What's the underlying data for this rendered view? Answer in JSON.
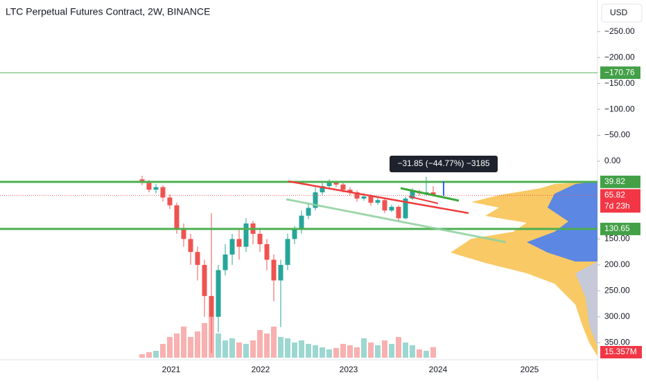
{
  "header": {
    "title": "LTC Perpetual Futures Contract, 2W, BINANCE",
    "currency": "USD"
  },
  "chart_data": {
    "type": "candlestick",
    "ylim": [
      -311,
      383
    ],
    "yticks": [
      {
        "value": -250,
        "label": "−250.00"
      },
      {
        "value": -200,
        "label": "−200.00"
      },
      {
        "value": -150,
        "label": "−150.00"
      },
      {
        "value": -100,
        "label": "−100.00"
      },
      {
        "value": -50,
        "label": "−50.00"
      },
      {
        "value": 0,
        "label": "0.00"
      },
      {
        "value": 150,
        "label": "150.00"
      },
      {
        "value": 200,
        "label": "200.00"
      },
      {
        "value": 250,
        "label": "250.00"
      },
      {
        "value": 300,
        "label": "300.00"
      },
      {
        "value": 350,
        "label": "350.00"
      }
    ],
    "categories": [
      "2021",
      "2022",
      "2023",
      "2024",
      "2025"
    ],
    "up_color": "#26a69a",
    "down_color": "#ef5350",
    "candles": [
      {
        "o": 35,
        "c": 42,
        "low": 28,
        "high": 46
      },
      {
        "o": 42,
        "c": 55,
        "low": 36,
        "high": 60
      },
      {
        "o": 55,
        "c": 50,
        "low": 44,
        "high": 62
      },
      {
        "o": 50,
        "c": 70,
        "low": 46,
        "high": 78
      },
      {
        "o": 70,
        "c": 85,
        "low": 64,
        "high": 92
      },
      {
        "o": 85,
        "c": 130,
        "low": 80,
        "high": 140
      },
      {
        "o": 130,
        "c": 150,
        "low": 120,
        "high": 165
      },
      {
        "o": 150,
        "c": 175,
        "low": 140,
        "high": 200
      },
      {
        "o": 175,
        "c": 200,
        "low": 165,
        "high": 230
      },
      {
        "o": 200,
        "c": 260,
        "low": 190,
        "high": 300
      },
      {
        "o": 260,
        "c": 300,
        "low": 100,
        "high": 370
      },
      {
        "o": 300,
        "c": 210,
        "low": 200,
        "high": 330
      },
      {
        "o": 210,
        "c": 180,
        "low": 160,
        "high": 220
      },
      {
        "o": 180,
        "c": 150,
        "low": 140,
        "high": 200
      },
      {
        "o": 150,
        "c": 165,
        "low": 130,
        "high": 190
      },
      {
        "o": 165,
        "c": 120,
        "low": 110,
        "high": 175
      },
      {
        "o": 120,
        "c": 140,
        "low": 115,
        "high": 160
      },
      {
        "o": 140,
        "c": 160,
        "low": 130,
        "high": 175
      },
      {
        "o": 160,
        "c": 190,
        "low": 150,
        "high": 210
      },
      {
        "o": 190,
        "c": 230,
        "low": 180,
        "high": 270
      },
      {
        "o": 230,
        "c": 200,
        "low": 190,
        "high": 320
      },
      {
        "o": 200,
        "c": 150,
        "low": 140,
        "high": 210
      },
      {
        "o": 150,
        "c": 130,
        "low": 125,
        "high": 160
      },
      {
        "o": 130,
        "c": 105,
        "low": 95,
        "high": 140
      },
      {
        "o": 105,
        "c": 90,
        "low": 80,
        "high": 112
      },
      {
        "o": 90,
        "c": 60,
        "low": 50,
        "high": 95
      },
      {
        "o": 60,
        "c": 48,
        "low": 40,
        "high": 65
      },
      {
        "o": 48,
        "c": 40,
        "low": 35,
        "high": 52
      },
      {
        "o": 40,
        "c": 45,
        "low": 38,
        "high": 50
      },
      {
        "o": 45,
        "c": 55,
        "low": 42,
        "high": 60
      },
      {
        "o": 55,
        "c": 60,
        "low": 50,
        "high": 66
      },
      {
        "o": 60,
        "c": 72,
        "low": 56,
        "high": 78
      },
      {
        "o": 72,
        "c": 68,
        "low": 62,
        "high": 76
      },
      {
        "o": 68,
        "c": 80,
        "low": 64,
        "high": 86
      },
      {
        "o": 80,
        "c": 75,
        "low": 70,
        "high": 84
      },
      {
        "o": 75,
        "c": 95,
        "low": 72,
        "high": 100
      },
      {
        "o": 95,
        "c": 88,
        "low": 84,
        "high": 98
      },
      {
        "o": 88,
        "c": 110,
        "low": 85,
        "high": 115
      },
      {
        "o": 110,
        "c": 72,
        "low": 68,
        "high": 112
      },
      {
        "o": 72,
        "c": 58,
        "low": 52,
        "high": 75
      },
      {
        "o": 58,
        "c": 62,
        "low": 55,
        "high": 66
      },
      {
        "o": 62,
        "c": 60,
        "low": 30,
        "high": 66
      },
      {
        "o": 60,
        "c": 65.82,
        "low": 48,
        "high": 68
      }
    ],
    "volumes": [
      5,
      8,
      10,
      20,
      30,
      35,
      45,
      30,
      38,
      50,
      60,
      35,
      25,
      28,
      22,
      20,
      25,
      40,
      35,
      45,
      30,
      28,
      22,
      25,
      20,
      18,
      15,
      12,
      14,
      20,
      18,
      15,
      28,
      22,
      18,
      25,
      20,
      30,
      22,
      18,
      12,
      10,
      15.357
    ],
    "volume_label": "15.357M",
    "levels": [
      {
        "value": -170.76,
        "label": "−170.76"
      },
      {
        "value": 39.82,
        "label": "39.82"
      },
      {
        "value": 130.65,
        "label": "130.65"
      }
    ],
    "last_price": {
      "value": 65.82,
      "label": "65.82"
    },
    "countdown": "7d 23h",
    "measure": "−31.85 (−44.77%) −3185"
  }
}
